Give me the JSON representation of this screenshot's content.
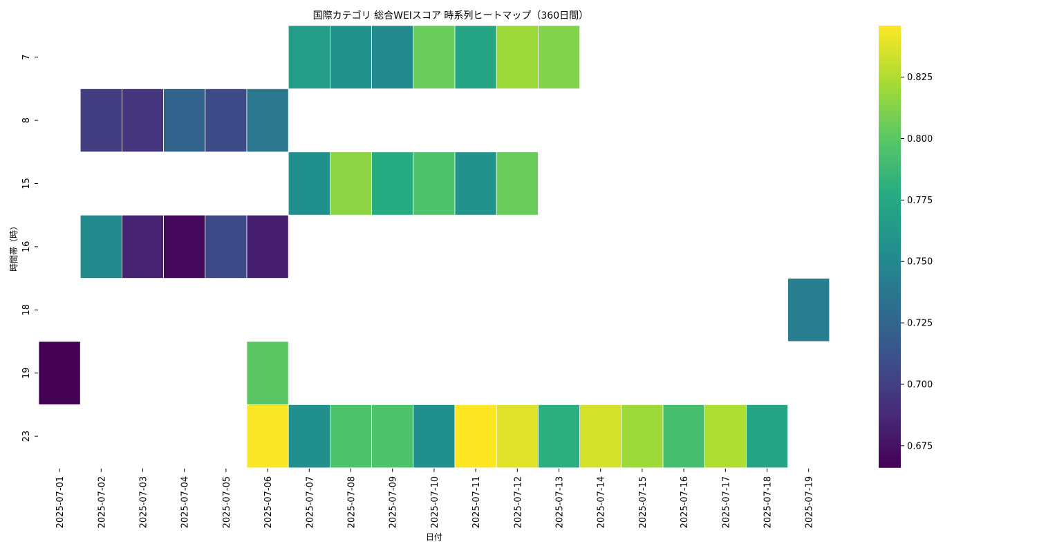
{
  "chart_data": {
    "type": "heatmap",
    "title": "国際カテゴリ 総合WEIスコア 時系列ヒートマップ（360日間）",
    "xlabel": "日付",
    "ylabel": "時間帯（時）",
    "x": [
      "2025-07-01",
      "2025-07-02",
      "2025-07-03",
      "2025-07-04",
      "2025-07-05",
      "2025-07-06",
      "2025-07-07",
      "2025-07-08",
      "2025-07-09",
      "2025-07-10",
      "2025-07-11",
      "2025-07-12",
      "2025-07-13",
      "2025-07-14",
      "2025-07-15",
      "2025-07-16",
      "2025-07-17",
      "2025-07-18",
      "2025-07-19"
    ],
    "y": [
      "7",
      "8",
      "15",
      "16",
      "18",
      "19",
      "23"
    ],
    "values": [
      [
        null,
        null,
        null,
        null,
        null,
        null,
        0.765,
        0.758,
        0.752,
        0.805,
        0.772,
        0.82,
        0.812,
        null,
        null,
        null,
        null,
        null,
        null
      ],
      [
        null,
        0.698,
        0.694,
        0.724,
        0.708,
        0.738,
        null,
        null,
        null,
        null,
        null,
        null,
        null,
        null,
        null,
        null,
        null,
        null,
        null
      ],
      [
        null,
        null,
        null,
        null,
        null,
        null,
        0.755,
        0.815,
        0.778,
        0.795,
        0.758,
        0.805,
        null,
        null,
        null,
        null,
        null,
        null,
        null
      ],
      [
        null,
        0.752,
        0.684,
        0.67,
        0.706,
        0.682,
        null,
        null,
        null,
        null,
        null,
        null,
        null,
        null,
        null,
        null,
        null,
        null,
        null
      ],
      [
        null,
        null,
        null,
        null,
        null,
        null,
        null,
        null,
        null,
        null,
        null,
        null,
        null,
        null,
        null,
        null,
        null,
        null,
        0.742
      ],
      [
        0.666,
        null,
        null,
        null,
        null,
        0.8,
        null,
        null,
        null,
        null,
        null,
        null,
        null,
        null,
        null,
        null,
        null,
        null,
        null
      ],
      [
        null,
        null,
        null,
        null,
        null,
        0.845,
        0.755,
        0.795,
        0.795,
        0.755,
        0.846,
        0.838,
        0.78,
        0.835,
        0.82,
        0.792,
        0.825,
        0.772,
        null
      ]
    ],
    "colorbar": {
      "colormap": "viridis",
      "vmin": 0.666,
      "vmax": 0.846,
      "ticks": [
        "0.675",
        "0.700",
        "0.725",
        "0.750",
        "0.775",
        "0.800",
        "0.825"
      ]
    },
    "grid": false,
    "legend": "colorbar-right"
  }
}
